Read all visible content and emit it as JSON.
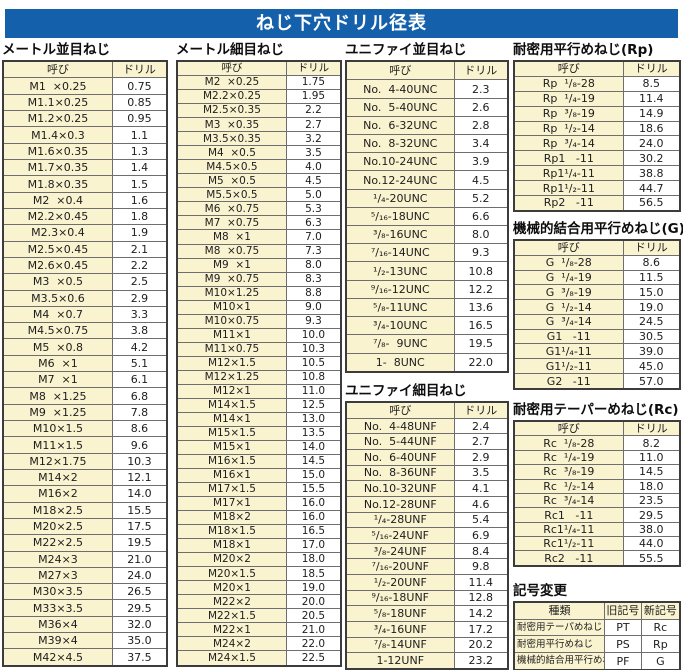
{
  "title": "ねじ下穴ドリル径表",
  "sections": {
    "metric_coarse": {
      "title": "メートル並目ねじ",
      "headers": [
        "呼び",
        "ドリル"
      ],
      "rows": [
        [
          "M1  ×0.25",
          "0.75"
        ],
        [
          "M1.1×0.25",
          "0.85"
        ],
        [
          "M1.2×0.25",
          "0.95"
        ],
        [
          "M1.4×0.3",
          "1.1"
        ],
        [
          "M1.6×0.35",
          "1.3"
        ],
        [
          "M1.7×0.35",
          "1.4"
        ],
        [
          "M1.8×0.35",
          "1.5"
        ],
        [
          "M2  ×0.4",
          "1.6"
        ],
        [
          "M2.2×0.45",
          "1.8"
        ],
        [
          "M2.3×0.4",
          "1.9"
        ],
        [
          "M2.5×0.45",
          "2.1"
        ],
        [
          "M2.6×0.45",
          "2.2"
        ],
        [
          "M3  ×0.5",
          "2.5"
        ],
        [
          "M3.5×0.6",
          "2.9"
        ],
        [
          "M4  ×0.7",
          "3.3"
        ],
        [
          "M4.5×0.75",
          "3.8"
        ],
        [
          "M5  ×0.8",
          "4.2"
        ],
        [
          "M6  ×1",
          "5.1"
        ],
        [
          "M7  ×1",
          "6.1"
        ],
        [
          "M8  ×1.25",
          "6.8"
        ],
        [
          "M9  ×1.25",
          "7.8"
        ],
        [
          "M10×1.5",
          "8.6"
        ],
        [
          "M11×1.5",
          "9.6"
        ],
        [
          "M12×1.75",
          "10.3"
        ],
        [
          "M14×2",
          "12.1"
        ],
        [
          "M16×2",
          "14.0"
        ],
        [
          "M18×2.5",
          "15.5"
        ],
        [
          "M20×2.5",
          "17.5"
        ],
        [
          "M22×2.5",
          "19.5"
        ],
        [
          "M24×3",
          "21.0"
        ],
        [
          "M27×3",
          "24.0"
        ],
        [
          "M30×3.5",
          "26.5"
        ],
        [
          "M33×3.5",
          "29.5"
        ],
        [
          "M36×4",
          "32.0"
        ],
        [
          "M39×4",
          "35.0"
        ],
        [
          "M42×4.5",
          "37.5"
        ]
      ]
    },
    "metric_fine": {
      "title": "メートル細目ねじ",
      "headers": [
        "呼び",
        "ドリル"
      ],
      "rows": [
        [
          "M2  ×0.25",
          "1.75"
        ],
        [
          "M2.2×0.25",
          "1.95"
        ],
        [
          "M2.5×0.35",
          "2.2"
        ],
        [
          "M3  ×0.35",
          "2.7"
        ],
        [
          "M3.5×0.35",
          "3.2"
        ],
        [
          "M4  ×0.5",
          "3.5"
        ],
        [
          "M4.5×0.5",
          "4.0"
        ],
        [
          "M5  ×0.5",
          "4.5"
        ],
        [
          "M5.5×0.5",
          "5.0"
        ],
        [
          "M6  ×0.75",
          "5.3"
        ],
        [
          "M7  ×0.75",
          "6.3"
        ],
        [
          "M8  ×1",
          "7.0"
        ],
        [
          "M8  ×0.75",
          "7.3"
        ],
        [
          "M9  ×1",
          "8.0"
        ],
        [
          "M9  ×0.75",
          "8.3"
        ],
        [
          "M10×1.25",
          "8.8"
        ],
        [
          "M10×1",
          "9.0"
        ],
        [
          "M10×0.75",
          "9.3"
        ],
        [
          "M11×1",
          "10.0"
        ],
        [
          "M11×0.75",
          "10.3"
        ],
        [
          "M12×1.5",
          "10.5"
        ],
        [
          "M12×1.25",
          "10.8"
        ],
        [
          "M12×1",
          "11.0"
        ],
        [
          "M14×1.5",
          "12.5"
        ],
        [
          "M14×1",
          "13.0"
        ],
        [
          "M15×1.5",
          "13.5"
        ],
        [
          "M15×1",
          "14.0"
        ],
        [
          "M16×1.5",
          "14.5"
        ],
        [
          "M16×1",
          "15.0"
        ],
        [
          "M17×1.5",
          "15.5"
        ],
        [
          "M17×1",
          "16.0"
        ],
        [
          "M18×2",
          "16.0"
        ],
        [
          "M18×1.5",
          "16.5"
        ],
        [
          "M18×1",
          "17.0"
        ],
        [
          "M20×2",
          "18.0"
        ],
        [
          "M20×1.5",
          "18.5"
        ],
        [
          "M20×1",
          "19.0"
        ],
        [
          "M22×2",
          "20.0"
        ],
        [
          "M22×1.5",
          "20.5"
        ],
        [
          "M22×1",
          "21.0"
        ],
        [
          "M24×2",
          "22.0"
        ],
        [
          "M24×1.5",
          "22.5"
        ]
      ]
    },
    "unified_coarse": {
      "title": "ユニファイ並目ねじ",
      "headers": [
        "呼び",
        "ドリル"
      ],
      "rows": [
        [
          "No.  4-40UNC",
          "2.3"
        ],
        [
          "No.  5-40UNC",
          "2.6"
        ],
        [
          "No.  6-32UNC",
          "2.8"
        ],
        [
          "No.  8-32UNC",
          "3.4"
        ],
        [
          "No.10-24UNC",
          "3.9"
        ],
        [
          "No.12-24UNC",
          "4.5"
        ],
        [
          "¹/₄-20UNC",
          "5.2"
        ],
        [
          "⁵/₁₆-18UNC",
          "6.6"
        ],
        [
          "³/₈-16UNC",
          "8.0"
        ],
        [
          "⁷/₁₆-14UNC",
          "9.3"
        ],
        [
          "¹/₂-13UNC",
          "10.8"
        ],
        [
          "⁹/₁₆-12UNC",
          "12.2"
        ],
        [
          "⁵/₈-11UNC",
          "13.6"
        ],
        [
          "³/₄-10UNC",
          "16.5"
        ],
        [
          "⁷/₈-  9UNC",
          "19.5"
        ],
        [
          "1-  8UNC",
          "22.0"
        ]
      ]
    },
    "unified_fine": {
      "title": "ユニファイ細目ねじ",
      "headers": [
        "呼び",
        "ドリル"
      ],
      "rows": [
        [
          "No.  4-48UNF",
          "2.4"
        ],
        [
          "No.  5-44UNF",
          "2.7"
        ],
        [
          "No.  6-40UNF",
          "2.9"
        ],
        [
          "No.  8-36UNF",
          "3.5"
        ],
        [
          "No.10-32UNF",
          "4.1"
        ],
        [
          "No.12-28UNF",
          "4.6"
        ],
        [
          "¹/₄-28UNF",
          "5.4"
        ],
        [
          "⁵/₁₆-24UNF",
          "6.9"
        ],
        [
          "³/₈-24UNF",
          "8.4"
        ],
        [
          "⁷/₁₆-20UNF",
          "9.8"
        ],
        [
          "¹/₂-20UNF",
          "11.4"
        ],
        [
          "⁹/₁₆-18UNF",
          "12.8"
        ],
        [
          "⁵/₈-18UNF",
          "14.2"
        ],
        [
          "³/₄-16UNF",
          "17.2"
        ],
        [
          "⁷/₈-14UNF",
          "20.2"
        ],
        [
          "1-12UNF",
          "23.2"
        ]
      ]
    },
    "rp": {
      "title": "耐密用平行めねじ(Rp)",
      "headers": [
        "呼び",
        "ドリル"
      ],
      "rows": [
        [
          "Rp  ¹/₈-28",
          "8.5"
        ],
        [
          "Rp  ¹/₄-19",
          "11.4"
        ],
        [
          "Rp  ³/₈-19",
          "14.9"
        ],
        [
          "Rp  ¹/₂-14",
          "18.6"
        ],
        [
          "Rp  ³/₄-14",
          "24.0"
        ],
        [
          "Rp1   -11",
          "30.2"
        ],
        [
          "Rp1¹/₄-11",
          "38.8"
        ],
        [
          "Rp1¹/₂-11",
          "44.7"
        ],
        [
          "Rp2   -11",
          "56.5"
        ]
      ]
    },
    "g": {
      "title": "機械的結合用平行めねじ(G)",
      "headers": [
        "呼び",
        "ドリル"
      ],
      "rows": [
        [
          "G  ¹/₈-28",
          "8.6"
        ],
        [
          "G  ¹/₄-19",
          "11.5"
        ],
        [
          "G  ³/₈-19",
          "15.0"
        ],
        [
          "G  ¹/₂-14",
          "19.0"
        ],
        [
          "G  ³/₄-14",
          "24.5"
        ],
        [
          "G1   -11",
          "30.5"
        ],
        [
          "G1¹/₄-11",
          "39.0"
        ],
        [
          "G1¹/₂-11",
          "45.0"
        ],
        [
          "G2   -11",
          "57.0"
        ]
      ]
    },
    "rc": {
      "title": "耐密用テーパーめねじ(Rc)",
      "headers": [
        "呼び",
        "ドリル"
      ],
      "rows": [
        [
          "Rc  ¹/₈-28",
          "8.2"
        ],
        [
          "Rc  ¹/₄-19",
          "11.0"
        ],
        [
          "Rc  ³/₈-19",
          "14.5"
        ],
        [
          "Rc  ¹/₂-14",
          "18.0"
        ],
        [
          "Rc  ³/₄-14",
          "23.5"
        ],
        [
          "Rc1   -11",
          "29.5"
        ],
        [
          "Rc1¹/₄-11",
          "38.0"
        ],
        [
          "Rc1¹/₂-11",
          "44.0"
        ],
        [
          "Rc2   -11",
          "55.5"
        ]
      ]
    },
    "symbol_change": {
      "title": "記号変更",
      "headers": [
        "種類",
        "旧記号",
        "新記号"
      ],
      "rows": [
        [
          "耐密用テーパめねじ",
          "PT",
          "Rc"
        ],
        [
          "耐密用平行めねじ",
          "PS",
          "Rp"
        ],
        [
          "機械的結合用平行めねじ",
          "PF",
          "G"
        ]
      ]
    }
  }
}
